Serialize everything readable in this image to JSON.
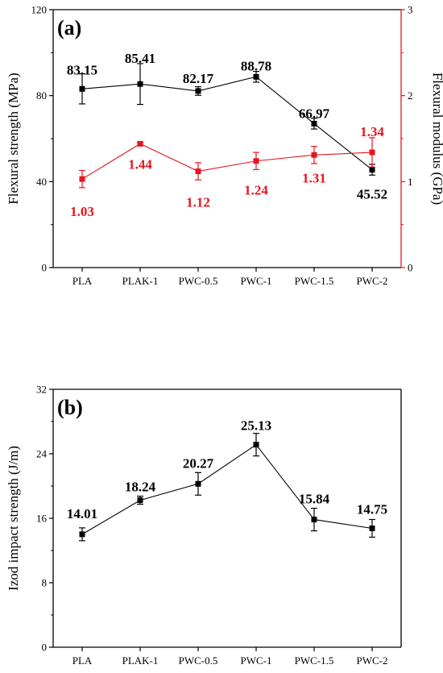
{
  "chart_data": [
    {
      "panel_label": "(a)",
      "type": "line",
      "categories": [
        "PLA",
        "PLAK-1",
        "PWC-0.5",
        "PWC-1",
        "PWC-1.5",
        "PWC-2"
      ],
      "ylabel": "Flexural strength (MPa)",
      "ylim": [
        0,
        120
      ],
      "yticks": [
        0,
        40,
        80,
        120
      ],
      "y2label": "Flexural modulus (GPa)",
      "y2lim": [
        0,
        3
      ],
      "y2ticks": [
        0,
        1,
        2,
        3
      ],
      "y2_color": "#e8141e",
      "series": [
        {
          "axis": "left",
          "color": "#000000",
          "marker": "square",
          "values": [
            83.15,
            85.41,
            82.17,
            88.78,
            66.97,
            45.52
          ],
          "errors": [
            7,
            9.5,
            2,
            2.5,
            2.5,
            2.5
          ],
          "labels": [
            "83.15",
            "85.41",
            "82.17",
            "88.78",
            "66.97",
            "45.52"
          ]
        },
        {
          "axis": "right",
          "color": "#e8141e",
          "marker": "square",
          "values": [
            1.03,
            1.44,
            1.12,
            1.24,
            1.31,
            1.34
          ],
          "errors": [
            0.1,
            0.02,
            0.1,
            0.1,
            0.1,
            0.17
          ],
          "labels": [
            "1.03",
            "1.44",
            "1.12",
            "1.24",
            "1.31",
            "1.34"
          ]
        }
      ]
    },
    {
      "panel_label": "(b)",
      "type": "line",
      "categories": [
        "PLA",
        "PLAK-1",
        "PWC-0.5",
        "PWC-1",
        "PWC-1.5",
        "PWC-2"
      ],
      "ylabel": "Izod impact strength (J/m)",
      "ylim": [
        0,
        32
      ],
      "yticks": [
        0,
        8,
        16,
        24,
        32
      ],
      "series": [
        {
          "axis": "left",
          "color": "#000000",
          "marker": "square",
          "values": [
            14.01,
            18.24,
            20.27,
            25.13,
            15.84,
            14.75
          ],
          "errors": [
            0.8,
            0.5,
            1.4,
            1.4,
            1.4,
            1.1
          ],
          "labels": [
            "14.01",
            "18.24",
            "20.27",
            "25.13",
            "15.84",
            "14.75"
          ]
        }
      ]
    }
  ]
}
